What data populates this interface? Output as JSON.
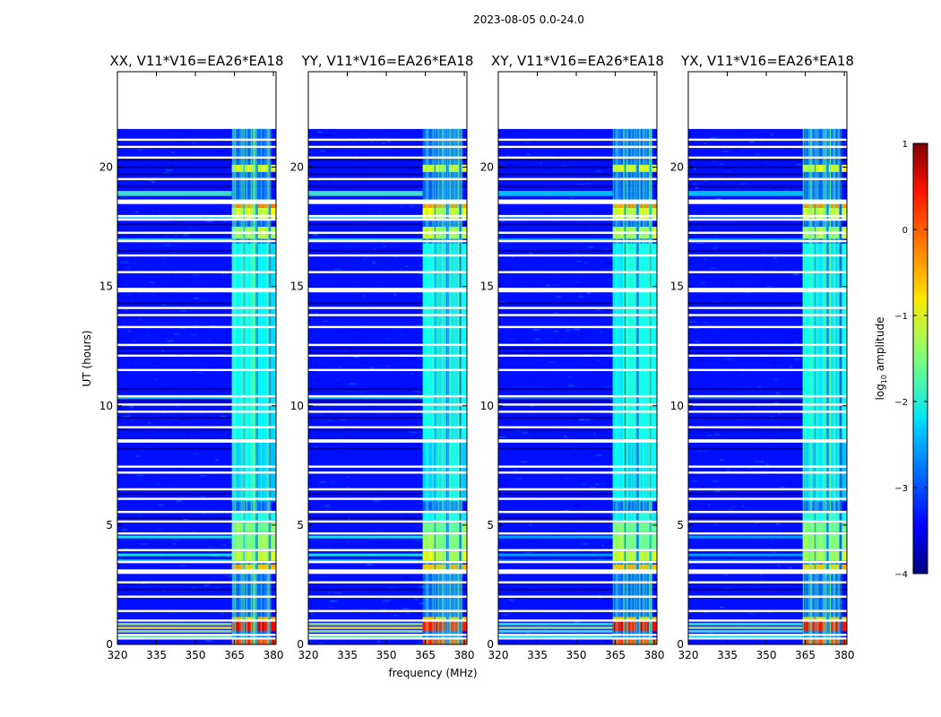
{
  "chart_data": {
    "type": "heatmap",
    "suptitle": "2023-08-05 0.0-24.0",
    "xlabel": "frequency (MHz)",
    "ylabel": "UT (hours)",
    "xlim": [
      320,
      381
    ],
    "ylim": [
      0,
      24
    ],
    "xticks": [
      320,
      335,
      350,
      365,
      380
    ],
    "yticks": [
      0,
      5,
      10,
      15,
      20
    ],
    "panels": [
      {
        "title": "XX, V11*V16=EA26*EA18",
        "strong_lowband": true
      },
      {
        "title": "YY, V11*V16=EA26*EA18",
        "strong_lowband": true
      },
      {
        "title": "XY, V11*V16=EA26*EA18",
        "strong_lowband": false
      },
      {
        "title": "YX, V11*V16=EA26*EA18",
        "strong_lowband": false
      }
    ],
    "data_end_hour": 21.6,
    "background_log_amplitude": -3.3,
    "rfi_band_mhz": [
      364,
      379
    ],
    "rfi_channels_mhz": [
      [
        364,
        368.5
      ],
      [
        369,
        373
      ],
      [
        374,
        378
      ],
      [
        379,
        381
      ]
    ],
    "rfi_levels": [
      {
        "t0": 0.0,
        "t1": 0.2,
        "level": 0.1
      },
      {
        "t0": 0.55,
        "t1": 0.95,
        "level": 0.4
      },
      {
        "t0": 0.95,
        "t1": 1.15,
        "level": -0.6
      },
      {
        "t0": 3.0,
        "t1": 3.35,
        "level": -0.5
      },
      {
        "t0": 3.5,
        "t1": 3.9,
        "level": -1.1
      },
      {
        "t0": 4.0,
        "t1": 4.6,
        "level": -1.4
      },
      {
        "t0": 4.7,
        "t1": 5.1,
        "level": -1.5
      },
      {
        "t0": 5.2,
        "t1": 5.5,
        "level": -2.1
      },
      {
        "t0": 6.0,
        "t1": 8.5,
        "level": -2.3
      },
      {
        "t0": 8.6,
        "t1": 16.8,
        "level": -2.2
      },
      {
        "t0": 17.0,
        "t1": 17.5,
        "level": -1.2
      },
      {
        "t0": 17.8,
        "t1": 18.3,
        "level": -1.0
      },
      {
        "t0": 18.3,
        "t1": 18.6,
        "level": -0.3
      },
      {
        "t0": 19.8,
        "t1": 20.1,
        "level": -1.0
      }
    ],
    "flagged_rows_hours": [
      0.25,
      0.4,
      1.0,
      1.4,
      2.0,
      2.6,
      3.0,
      3.05,
      3.1,
      3.45,
      3.95,
      4.65,
      5.15,
      5.55,
      6.1,
      6.5,
      7.2,
      7.45,
      8.5,
      8.55,
      9.1,
      9.75,
      10.05,
      10.4,
      11.5,
      12.1,
      12.55,
      13.3,
      13.8,
      14.1,
      14.8,
      14.85,
      14.9,
      15.6,
      16.3,
      16.9,
      17.25,
      17.8,
      17.95,
      18.5,
      18.55,
      18.6,
      19.5,
      20.4,
      20.85,
      21.15
    ],
    "dark_rows_hours": [
      0.75,
      2.3,
      5.3,
      6.3,
      8.2,
      9.0,
      9.5,
      10.2,
      10.7,
      12.2,
      12.4,
      14.3,
      16.5,
      17.6,
      19.2,
      19.7,
      20.0,
      20.3,
      20.9
    ],
    "lowband_rows": [
      {
        "t": 0.3,
        "level": -1.6
      },
      {
        "t": 0.55,
        "level": -1.3
      },
      {
        "t": 0.7,
        "level": -0.8
      },
      {
        "t": 0.85,
        "level": -1.4
      },
      {
        "t": 3.5,
        "level": -2.1
      },
      {
        "t": 3.75,
        "level": -2.0
      },
      {
        "t": 4.5,
        "level": -2.0
      },
      {
        "t": 10.35,
        "level": -2.3
      },
      {
        "t": 16.95,
        "level": -1.9
      },
      {
        "t": 17.85,
        "level": -2.1
      },
      {
        "t": 18.85,
        "level": -1.8
      },
      {
        "t": 18.95,
        "level": -1.8
      }
    ],
    "colorbar": {
      "label": "log₁₀ amplitude",
      "label_base": "log",
      "label_sub": "10",
      "label_tail": " amplitude",
      "ticks": [
        1,
        0,
        -1,
        -2,
        -3,
        -4
      ],
      "tick_labels": [
        "1",
        "0",
        "−1",
        "−2",
        "−3",
        "−4"
      ],
      "vmin": -4,
      "vmax": 1,
      "colormap": "jet"
    }
  }
}
